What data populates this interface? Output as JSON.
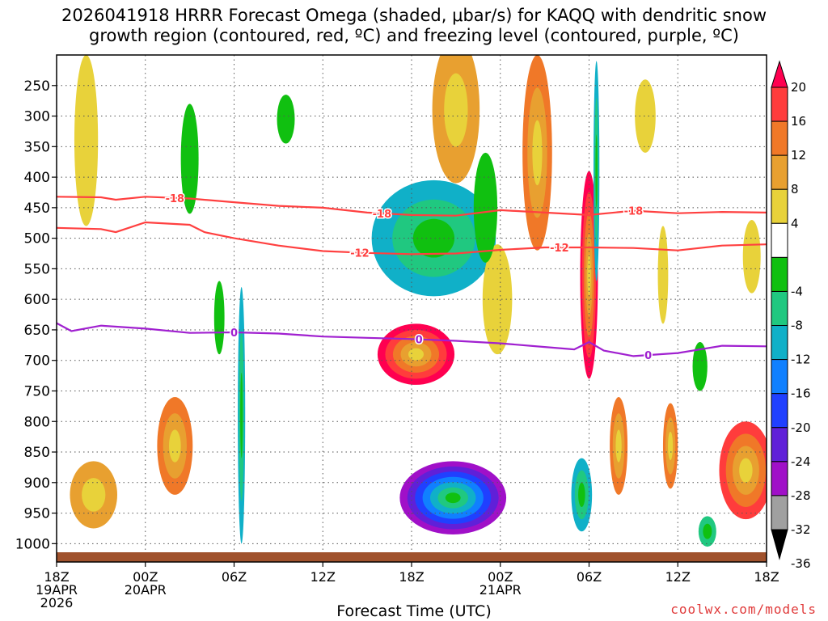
{
  "title_line1": "2026041918 HRRR Forecast Omega (shaded, μbar/s) for KAQQ with dendritic snow",
  "title_line2": "growth region (contoured, red, ºC) and freezing level (contoured, purple, ºC)",
  "credit": "coolwx.com/models",
  "chart_data": {
    "type": "heatmap",
    "xlabel": "Forecast Time (UTC)",
    "ylabel": "",
    "x_ticks": [
      {
        "label": "18Z",
        "sub1": "19APR",
        "sub2": "2026",
        "hour": 0
      },
      {
        "label": "00Z",
        "sub1": "20APR",
        "sub2": "",
        "hour": 6
      },
      {
        "label": "06Z",
        "sub1": "",
        "sub2": "",
        "hour": 12
      },
      {
        "label": "12Z",
        "sub1": "",
        "sub2": "",
        "hour": 18
      },
      {
        "label": "18Z",
        "sub1": "",
        "sub2": "",
        "hour": 24
      },
      {
        "label": "00Z",
        "sub1": "21APR",
        "sub2": "",
        "hour": 30
      },
      {
        "label": "06Z",
        "sub1": "",
        "sub2": "",
        "hour": 36
      },
      {
        "label": "12Z",
        "sub1": "",
        "sub2": "",
        "hour": 42
      },
      {
        "label": "18Z",
        "sub1": "",
        "sub2": "",
        "hour": 48
      }
    ],
    "y_ticks": [
      250,
      300,
      350,
      400,
      450,
      500,
      550,
      600,
      650,
      700,
      750,
      800,
      850,
      900,
      950,
      1000
    ],
    "y_range_hpa": [
      200,
      1030
    ],
    "x_range_hours": [
      0,
      48
    ],
    "colorbar": {
      "labels": [
        "20",
        "16",
        "12",
        "8",
        "4",
        "-4",
        "-8",
        "-12",
        "-16",
        "-20",
        "-24",
        "-28",
        "-32",
        "-36"
      ],
      "colors": [
        "#ff0050",
        "#ff3c3c",
        "#f07828",
        "#e8a030",
        "#e8d23a",
        "#ffffff",
        "#10c010",
        "#20c880",
        "#10b0c8",
        "#1080ff",
        "#2040ff",
        "#6020d8",
        "#a010c8",
        "#a0a0a0",
        "#000000"
      ]
    },
    "contours": [
      {
        "label": "-18",
        "color": "#ff4040",
        "points": [
          [
            0,
            432
          ],
          [
            3,
            433
          ],
          [
            4,
            437
          ],
          [
            6,
            432
          ],
          [
            9,
            435
          ],
          [
            12,
            441
          ],
          [
            15,
            447
          ],
          [
            18,
            450
          ],
          [
            21,
            458
          ],
          [
            24,
            462
          ],
          [
            27,
            463
          ],
          [
            30,
            454
          ],
          [
            33,
            458
          ],
          [
            36,
            462
          ],
          [
            39,
            455
          ],
          [
            42,
            459
          ],
          [
            45,
            457
          ],
          [
            48,
            458
          ]
        ],
        "label_hours": [
          8,
          22,
          39
        ]
      },
      {
        "label": "-12",
        "color": "#ff4040",
        "points": [
          [
            0,
            483
          ],
          [
            3,
            485
          ],
          [
            4,
            490
          ],
          [
            6,
            474
          ],
          [
            9,
            478
          ],
          [
            10,
            490
          ],
          [
            12,
            500
          ],
          [
            15,
            512
          ],
          [
            18,
            521
          ],
          [
            21,
            524
          ],
          [
            24,
            526
          ],
          [
            27,
            525
          ],
          [
            30,
            519
          ],
          [
            33,
            515
          ],
          [
            36,
            515
          ],
          [
            39,
            516
          ],
          [
            42,
            520
          ],
          [
            45,
            512
          ],
          [
            48,
            510
          ]
        ],
        "label_hours": [
          20.5,
          34
        ]
      },
      {
        "label": "0",
        "color": "#a020d0",
        "points": [
          [
            0,
            639
          ],
          [
            1,
            652
          ],
          [
            3,
            643
          ],
          [
            6,
            648
          ],
          [
            9,
            655
          ],
          [
            12,
            654
          ],
          [
            15,
            656
          ],
          [
            18,
            661
          ],
          [
            21,
            663
          ],
          [
            24,
            665
          ],
          [
            27,
            668
          ],
          [
            30,
            672
          ],
          [
            33,
            678
          ],
          [
            35,
            682
          ],
          [
            36,
            670
          ],
          [
            37,
            684
          ],
          [
            39,
            693
          ],
          [
            42,
            688
          ],
          [
            45,
            676
          ],
          [
            48,
            677
          ]
        ],
        "label_hours": [
          12,
          24.5,
          40
        ]
      }
    ],
    "blobs": [
      {
        "hour": 26.8,
        "hpa": 925,
        "w": 3.6,
        "h": 60,
        "levels": [
          "#a010c8",
          "#6020d8",
          "#2040ff",
          "#1080ff",
          "#10b0c8",
          "#20c880",
          "#10c010"
        ]
      },
      {
        "hour": 24.3,
        "hpa": 690,
        "w": 2.6,
        "h": 50,
        "levels": [
          "#ff0050",
          "#ff3c3c",
          "#f07828",
          "#e8a030",
          "#e8d23a"
        ]
      },
      {
        "hour": 25.5,
        "hpa": 500,
        "w": 4.2,
        "h": 95,
        "levels": [
          "#10b0c8",
          "#20c880",
          "#10c010"
        ]
      },
      {
        "hour": 36,
        "hpa": 560,
        "w": 0.6,
        "h": 170,
        "levels": [
          "#ff0050",
          "#ff3c3c",
          "#f07828",
          "#e8a030",
          "#e8d23a"
        ]
      },
      {
        "hour": 32.5,
        "hpa": 360,
        "w": 1.0,
        "h": 160,
        "levels": [
          "#f07828",
          "#e8a030",
          "#e8d23a"
        ]
      },
      {
        "hour": 27,
        "hpa": 290,
        "w": 1.6,
        "h": 120,
        "levels": [
          "#e8a030",
          "#e8d23a"
        ]
      },
      {
        "hour": 2,
        "hpa": 340,
        "w": 0.8,
        "h": 140,
        "levels": [
          "#e8d23a"
        ]
      },
      {
        "hour": 2.5,
        "hpa": 920,
        "w": 1.6,
        "h": 55,
        "levels": [
          "#e8a030",
          "#e8d23a"
        ]
      },
      {
        "hour": 8,
        "hpa": 840,
        "w": 1.2,
        "h": 80,
        "levels": [
          "#f07828",
          "#e8a030",
          "#e8d23a"
        ]
      },
      {
        "hour": 12.5,
        "hpa": 790,
        "w": 0.25,
        "h": 210,
        "levels": [
          "#10b0c8",
          "#20c880",
          "#10c010"
        ]
      },
      {
        "hour": 15.5,
        "hpa": 305,
        "w": 0.6,
        "h": 40,
        "levels": [
          "#10c010"
        ]
      },
      {
        "hour": 11,
        "hpa": 630,
        "w": 0.35,
        "h": 60,
        "levels": [
          "#10c010"
        ]
      },
      {
        "hour": 9,
        "hpa": 370,
        "w": 0.6,
        "h": 90,
        "levels": [
          "#10c010"
        ]
      },
      {
        "hour": 35.5,
        "hpa": 920,
        "w": 0.7,
        "h": 60,
        "levels": [
          "#10b0c8",
          "#20c880",
          "#10c010"
        ]
      },
      {
        "hour": 36.5,
        "hpa": 390,
        "w": 0.2,
        "h": 180,
        "levels": [
          "#10b0c8",
          "#20c880",
          "#10c010"
        ]
      },
      {
        "hour": 38,
        "hpa": 840,
        "w": 0.6,
        "h": 80,
        "levels": [
          "#f07828",
          "#e8a030",
          "#e8d23a"
        ]
      },
      {
        "hour": 41.5,
        "hpa": 840,
        "w": 0.5,
        "h": 70,
        "levels": [
          "#f07828",
          "#e8a030",
          "#e8d23a"
        ]
      },
      {
        "hour": 46.6,
        "hpa": 880,
        "w": 1.8,
        "h": 80,
        "levels": [
          "#ff3c3c",
          "#f07828",
          "#e8a030",
          "#e8d23a"
        ]
      },
      {
        "hour": 39.8,
        "hpa": 300,
        "w": 0.7,
        "h": 60,
        "levels": [
          "#e8d23a"
        ]
      },
      {
        "hour": 47,
        "hpa": 530,
        "w": 0.6,
        "h": 60,
        "levels": [
          "#e8d23a"
        ]
      },
      {
        "hour": 43.5,
        "hpa": 710,
        "w": 0.5,
        "h": 40,
        "levels": [
          "#10c010"
        ]
      },
      {
        "hour": 44,
        "hpa": 980,
        "w": 0.6,
        "h": 25,
        "levels": [
          "#20c880",
          "#10c010"
        ]
      },
      {
        "hour": 41,
        "hpa": 560,
        "w": 0.35,
        "h": 80,
        "levels": [
          "#e8d23a"
        ]
      },
      {
        "hour": 29.8,
        "hpa": 600,
        "w": 1.0,
        "h": 90,
        "levels": [
          "#e8d23a"
        ]
      },
      {
        "hour": 29,
        "hpa": 450,
        "w": 0.8,
        "h": 90,
        "levels": [
          "#10c010"
        ]
      }
    ]
  }
}
